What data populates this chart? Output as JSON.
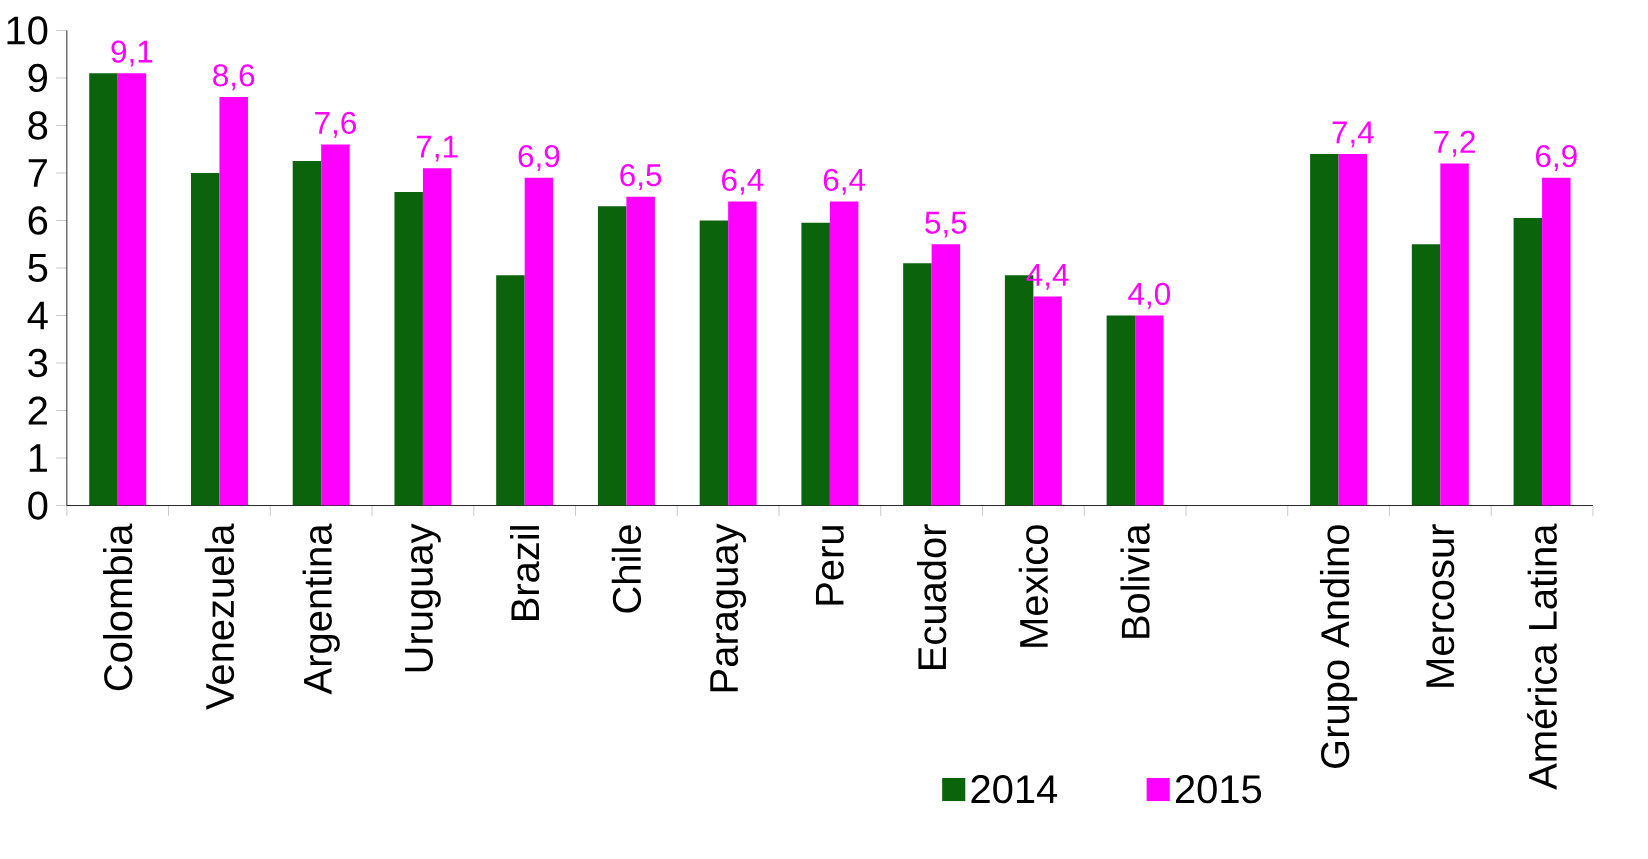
{
  "chart_data": {
    "type": "bar",
    "categories": [
      "Colombia",
      "Venezuela",
      "Argentina",
      "Uruguay",
      "Brazil",
      "Chile",
      "Paraguay",
      "Peru",
      "Ecuador",
      "Mexico",
      "Bolivia",
      null,
      "Grupo Andino",
      "Mercosur",
      "América Latina"
    ],
    "series": [
      {
        "name": "2014",
        "color": "#0b640b",
        "values": [
          9.1,
          7.0,
          7.25,
          6.6,
          4.85,
          6.3,
          6.0,
          5.95,
          5.1,
          4.85,
          4.0,
          null,
          7.4,
          5.5,
          6.05
        ]
      },
      {
        "name": "2015",
        "color": "#ff00ff",
        "values": [
          9.1,
          8.6,
          7.6,
          7.1,
          6.9,
          6.5,
          6.4,
          6.4,
          5.5,
          4.4,
          4.0,
          null,
          7.4,
          7.2,
          6.9
        ],
        "value_labels": [
          "9,1",
          "8,6",
          "7,6",
          "7,1",
          "6,9",
          "6,5",
          "6,4",
          "6,4",
          "5,5",
          "4,4",
          "4,0",
          null,
          "7,4",
          "7,2",
          "6,9"
        ]
      }
    ],
    "ylim": [
      0,
      10
    ],
    "yticks": [
      0,
      1,
      2,
      3,
      4,
      5,
      6,
      7,
      8,
      9,
      10
    ],
    "grid": false,
    "legend": "bottom"
  }
}
